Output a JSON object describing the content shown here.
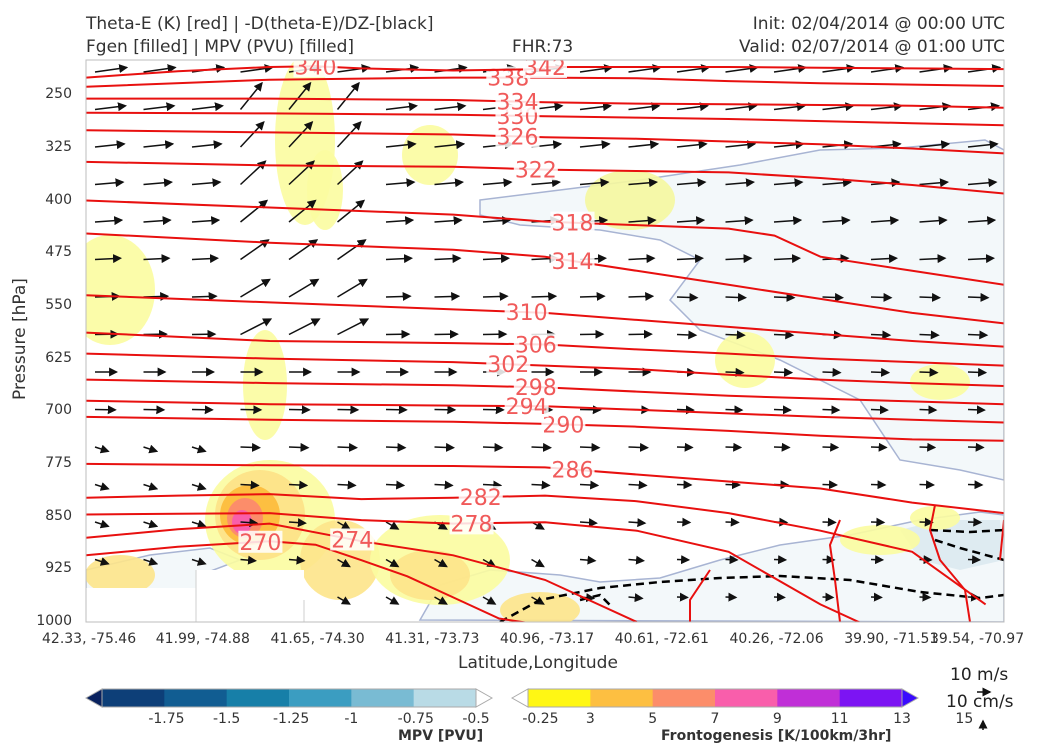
{
  "header": {
    "title_line1": "Theta-E (K) [red] | -D(theta-E)/DZ-[black]",
    "title_line2": "Fgen [filled] | MPV (PVU) [filled]",
    "fhr": "FHR:73",
    "init": "Init: 02/04/2014 @ 00:00 UTC",
    "valid": "Valid: 02/07/2014 @ 01:00 UTC"
  },
  "chart_data": {
    "type": "contour",
    "xlabel": "Latitude,Longitude",
    "ylabel": "Pressure [hPa]",
    "x_ticks": [
      "42.33, -75.46",
      "41.99, -74.88",
      "41.65, -74.30",
      "41.31, -73.73",
      "40.96, -73.17",
      "40.61, -72.61",
      "40.26, -72.06",
      "39.90, -71.51",
      "39.54, -70.97"
    ],
    "y_ticks": [
      250,
      325,
      400,
      475,
      550,
      625,
      700,
      775,
      850,
      925,
      1000
    ],
    "ylim": [
      1000,
      200
    ],
    "theta_e_contours": [
      {
        "label": "270",
        "points": [
          [
            0,
            905
          ],
          [
            0.1,
            893
          ],
          [
            0.2,
            885
          ],
          [
            0.25,
            890
          ],
          [
            0.3,
            912
          ],
          [
            0.35,
            935
          ],
          [
            0.4,
            965
          ],
          [
            0.45,
            995
          ],
          [
            0.5,
            1005
          ]
        ]
      },
      {
        "label": "274",
        "points": [
          [
            0,
            880
          ],
          [
            0.1,
            868
          ],
          [
            0.2,
            860
          ],
          [
            0.3,
            885
          ],
          [
            0.4,
            905
          ],
          [
            0.5,
            940
          ],
          [
            0.6,
            1000
          ]
        ]
      },
      {
        "label": "278",
        "points": [
          [
            0,
            847
          ],
          [
            0.1,
            846
          ],
          [
            0.2,
            845
          ],
          [
            0.3,
            855
          ],
          [
            0.4,
            860
          ],
          [
            0.5,
            858
          ],
          [
            0.6,
            870
          ],
          [
            0.7,
            900
          ],
          [
            0.8,
            975
          ],
          [
            0.85,
            1005
          ]
        ]
      },
      {
        "label": "282",
        "points": [
          [
            0,
            823
          ],
          [
            0.1,
            820
          ],
          [
            0.2,
            818
          ],
          [
            0.3,
            825
          ],
          [
            0.4,
            823
          ],
          [
            0.5,
            820
          ],
          [
            0.6,
            828
          ],
          [
            0.7,
            845
          ],
          [
            0.8,
            870
          ],
          [
            0.9,
            900
          ],
          [
            0.98,
            975
          ]
        ]
      },
      {
        "label": "286",
        "points": [
          [
            0,
            775
          ],
          [
            0.2,
            777
          ],
          [
            0.4,
            778
          ],
          [
            0.5,
            780
          ],
          [
            0.6,
            790
          ],
          [
            0.7,
            800
          ],
          [
            0.8,
            810
          ],
          [
            0.9,
            830
          ],
          [
            1,
            845
          ]
        ]
      },
      {
        "label": "290",
        "points": [
          [
            0,
            708
          ],
          [
            0.2,
            712
          ],
          [
            0.4,
            715
          ],
          [
            0.5,
            718
          ],
          [
            0.6,
            722
          ],
          [
            0.7,
            728
          ],
          [
            0.8,
            735
          ],
          [
            0.9,
            740
          ],
          [
            1,
            742
          ]
        ]
      },
      {
        "label": "294",
        "points": [
          [
            0,
            685
          ],
          [
            0.2,
            690
          ],
          [
            0.4,
            692
          ],
          [
            0.5,
            693
          ],
          [
            0.6,
            698
          ],
          [
            0.7,
            703
          ],
          [
            0.8,
            708
          ],
          [
            0.9,
            712
          ],
          [
            1,
            716
          ]
        ]
      },
      {
        "label": "298",
        "points": [
          [
            0,
            655
          ],
          [
            0.2,
            660
          ],
          [
            0.4,
            663
          ],
          [
            0.5,
            666
          ],
          [
            0.6,
            672
          ],
          [
            0.7,
            678
          ],
          [
            0.8,
            682
          ],
          [
            0.9,
            686
          ],
          [
            1,
            690
          ]
        ]
      },
      {
        "label": "302",
        "points": [
          [
            0,
            618
          ],
          [
            0.2,
            625
          ],
          [
            0.4,
            630
          ],
          [
            0.5,
            635
          ],
          [
            0.6,
            640
          ],
          [
            0.7,
            648
          ],
          [
            0.8,
            655
          ],
          [
            0.9,
            660
          ],
          [
            1,
            664
          ]
        ]
      },
      {
        "label": "306",
        "points": [
          [
            0,
            588
          ],
          [
            0.2,
            600
          ],
          [
            0.4,
            603
          ],
          [
            0.5,
            605
          ],
          [
            0.6,
            612
          ],
          [
            0.7,
            618
          ],
          [
            0.8,
            625
          ],
          [
            0.9,
            630
          ],
          [
            1,
            635
          ]
        ]
      },
      {
        "label": "310",
        "points": [
          [
            0,
            535
          ],
          [
            0.2,
            545
          ],
          [
            0.4,
            555
          ],
          [
            0.5,
            560
          ],
          [
            0.6,
            570
          ],
          [
            0.7,
            580
          ],
          [
            0.8,
            590
          ],
          [
            0.9,
            600
          ],
          [
            1,
            608
          ]
        ]
      },
      {
        "label": "314",
        "points": [
          [
            0,
            447
          ],
          [
            0.2,
            460
          ],
          [
            0.4,
            470
          ],
          [
            0.5,
            480
          ],
          [
            0.6,
            500
          ],
          [
            0.7,
            520
          ],
          [
            0.8,
            540
          ],
          [
            0.9,
            560
          ],
          [
            1,
            575
          ]
        ]
      },
      {
        "label": "318",
        "points": [
          [
            0,
            400
          ],
          [
            0.2,
            410
          ],
          [
            0.4,
            420
          ],
          [
            0.5,
            430
          ],
          [
            0.6,
            435
          ],
          [
            0.7,
            440
          ],
          [
            0.75,
            450
          ],
          [
            0.8,
            480
          ],
          [
            0.9,
            500
          ],
          [
            1,
            520
          ]
        ]
      },
      {
        "label": "322",
        "points": [
          [
            0,
            345
          ],
          [
            0.2,
            350
          ],
          [
            0.4,
            352
          ],
          [
            0.5,
            356
          ],
          [
            0.6,
            358
          ],
          [
            0.7,
            360
          ],
          [
            0.8,
            368
          ],
          [
            0.9,
            378
          ],
          [
            1,
            390
          ]
        ]
      },
      {
        "label": "326",
        "points": [
          [
            0,
            300
          ],
          [
            0.2,
            303
          ],
          [
            0.4,
            306
          ],
          [
            0.5,
            310
          ],
          [
            0.6,
            312
          ],
          [
            0.7,
            316
          ],
          [
            0.8,
            320
          ],
          [
            0.9,
            326
          ],
          [
            1,
            333
          ]
        ]
      },
      {
        "label": "330",
        "points": [
          [
            0,
            275
          ],
          [
            0.2,
            276
          ],
          [
            0.4,
            278
          ],
          [
            0.5,
            280
          ],
          [
            0.6,
            282
          ],
          [
            0.7,
            284
          ],
          [
            0.8,
            287
          ],
          [
            0.9,
            290
          ],
          [
            1,
            293
          ]
        ]
      },
      {
        "label": "334",
        "points": [
          [
            0,
            255
          ],
          [
            0.2,
            255
          ],
          [
            0.4,
            257
          ],
          [
            0.5,
            260
          ],
          [
            0.6,
            262
          ],
          [
            0.7,
            263
          ],
          [
            0.8,
            264
          ],
          [
            0.9,
            265
          ],
          [
            1,
            268
          ]
        ]
      },
      {
        "label": "338",
        "points": [
          [
            0,
            238
          ],
          [
            0.2,
            228
          ],
          [
            0.4,
            225
          ],
          [
            0.5,
            225
          ],
          [
            0.6,
            226
          ],
          [
            0.7,
            230
          ],
          [
            0.8,
            233
          ],
          [
            0.9,
            235
          ],
          [
            1,
            237
          ]
        ]
      },
      {
        "label": "340",
        "points": [
          [
            0,
            225
          ],
          [
            0.1,
            216
          ],
          [
            0.2,
            210
          ],
          [
            0.25,
            209
          ],
          [
            0.3,
            212
          ],
          [
            0.4,
            215
          ],
          [
            0.5,
            213
          ]
        ]
      },
      {
        "label": "342",
        "points": [
          [
            0.5,
            210
          ],
          [
            0.6,
            210
          ],
          [
            0.7,
            210
          ],
          [
            0.8,
            211
          ],
          [
            0.9,
            212
          ],
          [
            1,
            213
          ]
        ]
      }
    ],
    "fgen_colorbar": {
      "title": "Frontogenesis [K/100km/3hr]",
      "levels": [
        3,
        5,
        7,
        9,
        11,
        13,
        15
      ],
      "colors": [
        "#ffffff",
        "#fff714",
        "#fdbf41",
        "#fc8d6a",
        "#f95eab",
        "#c02fd7",
        "#7c14f3",
        "#3a0afe"
      ]
    },
    "mpv_colorbar": {
      "title": "MPV [PVU]",
      "levels": [
        -1.75,
        -1.5,
        -1.25,
        -1.0,
        -0.75,
        -0.5,
        -0.25
      ],
      "colors": [
        "#08215e",
        "#0d3f78",
        "#115d92",
        "#177fa8",
        "#3b9dc1",
        "#79bbd3",
        "#b9dbe6",
        "#ffffff"
      ]
    },
    "wind_reference": {
      "horizontal": "10 m/s",
      "vertical": "10 cm/s"
    }
  }
}
